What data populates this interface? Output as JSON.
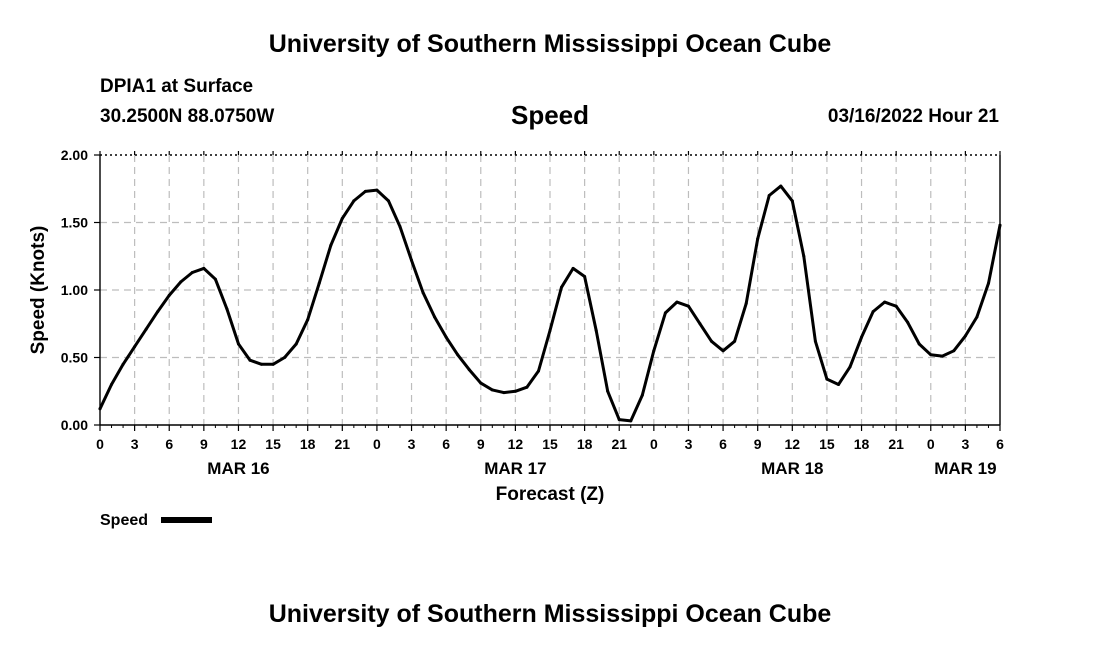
{
  "header": {
    "title": "University of Southern Mississippi Ocean Cube",
    "station": "DPIA1 at Surface",
    "coords": "30.2500N  88.0750W",
    "datetime": "03/16/2022 Hour 21"
  },
  "footer": {
    "title": "University of Southern Mississippi Ocean Cube"
  },
  "chart_data": {
    "type": "line",
    "title": "Speed",
    "xlabel": "Forecast (Z)",
    "ylabel": "Speed (Knots)",
    "ylim": [
      0,
      2
    ],
    "xlim": [
      0,
      78
    ],
    "grid": true,
    "y_ticks": [
      "0.00",
      "0.50",
      "1.00",
      "1.50",
      "2.00"
    ],
    "x_tick_labels": [
      "0",
      "3",
      "6",
      "9",
      "12",
      "15",
      "18",
      "21",
      "0",
      "3",
      "6",
      "9",
      "12",
      "15",
      "18",
      "21",
      "0",
      "3",
      "6",
      "9",
      "12",
      "15",
      "18",
      "21",
      "0",
      "3",
      "6"
    ],
    "date_labels": [
      {
        "label": "MAR 16",
        "hour": 12
      },
      {
        "label": "MAR 17",
        "hour": 36
      },
      {
        "label": "MAR 18",
        "hour": 60
      },
      {
        "label": "MAR 19",
        "hour": 75
      }
    ],
    "legend": {
      "label": "Speed",
      "position": "bottom-left"
    },
    "series": [
      {
        "name": "Speed",
        "x": [
          0,
          1,
          2,
          3,
          4,
          5,
          6,
          7,
          8,
          9,
          10,
          11,
          12,
          13,
          14,
          15,
          16,
          17,
          18,
          19,
          20,
          21,
          22,
          23,
          24,
          25,
          26,
          27,
          28,
          29,
          30,
          31,
          32,
          33,
          34,
          35,
          36,
          37,
          38,
          39,
          40,
          41,
          42,
          43,
          44,
          45,
          46,
          47,
          48,
          49,
          50,
          51,
          52,
          53,
          54,
          55,
          56,
          57,
          58,
          59,
          60,
          61,
          62,
          63,
          64,
          65,
          66,
          67,
          68,
          69,
          70,
          71,
          72,
          73,
          74,
          75,
          76,
          77,
          78
        ],
        "values": [
          0.12,
          0.3,
          0.45,
          0.58,
          0.71,
          0.84,
          0.96,
          1.06,
          1.13,
          1.16,
          1.08,
          0.86,
          0.6,
          0.48,
          0.45,
          0.45,
          0.5,
          0.6,
          0.78,
          1.05,
          1.33,
          1.53,
          1.66,
          1.73,
          1.74,
          1.66,
          1.47,
          1.22,
          0.98,
          0.8,
          0.65,
          0.52,
          0.41,
          0.31,
          0.26,
          0.24,
          0.25,
          0.28,
          0.4,
          0.7,
          1.02,
          1.16,
          1.1,
          0.7,
          0.25,
          0.04,
          0.03,
          0.22,
          0.55,
          0.83,
          0.91,
          0.88,
          0.75,
          0.62,
          0.55,
          0.62,
          0.9,
          1.38,
          1.7,
          1.77,
          1.66,
          1.25,
          0.62,
          0.34,
          0.3,
          0.43,
          0.65,
          0.84,
          0.91,
          0.88,
          0.76,
          0.6,
          0.52,
          0.51,
          0.55,
          0.66,
          0.8,
          1.05,
          1.48
        ]
      }
    ]
  }
}
